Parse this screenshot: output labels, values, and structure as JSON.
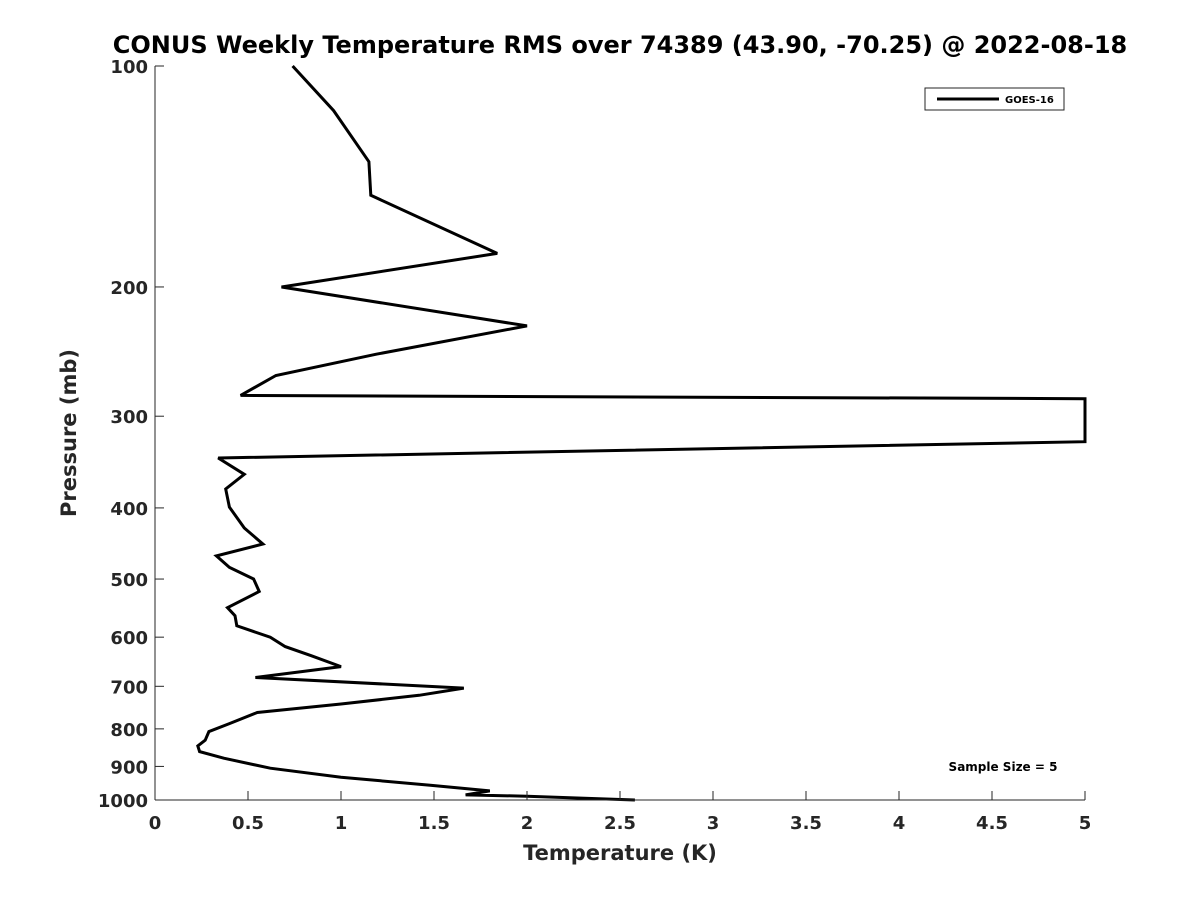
{
  "chart_data": {
    "type": "line",
    "title": "CONUS Weekly Temperature RMS over 74389 (43.90, -70.25) @ 2022-08-18",
    "xlabel": "Temperature (K)",
    "ylabel": "Pressure (mb)",
    "xlim": [
      0,
      5
    ],
    "ylim": [
      100,
      1000
    ],
    "y_scale": "log",
    "y_reversed": true,
    "x_ticks": [
      "0",
      "0.5",
      "1",
      "1.5",
      "2",
      "2.5",
      "3",
      "3.5",
      "4",
      "4.5",
      "5"
    ],
    "y_ticks": [
      "100",
      "200",
      "300",
      "400",
      "500",
      "600",
      "700",
      "800",
      "900",
      "1000"
    ],
    "grid": false,
    "legend_position": "top-right",
    "annotation": "Sample Size = 5",
    "series": [
      {
        "name": "GOES-16",
        "color": "#000000",
        "points": [
          [
            0.74,
            100
          ],
          [
            0.96,
            115
          ],
          [
            1.15,
            135
          ],
          [
            1.16,
            150
          ],
          [
            1.84,
            180
          ],
          [
            0.68,
            200
          ],
          [
            2.0,
            226
          ],
          [
            1.19,
            247
          ],
          [
            0.65,
            264
          ],
          [
            0.46,
            281
          ],
          [
            5.0,
            284
          ],
          [
            5.0,
            325
          ],
          [
            0.34,
            342
          ],
          [
            0.48,
            360
          ],
          [
            0.38,
            377
          ],
          [
            0.4,
            399
          ],
          [
            0.48,
            426
          ],
          [
            0.58,
            448
          ],
          [
            0.33,
            465
          ],
          [
            0.4,
            482
          ],
          [
            0.53,
            500
          ],
          [
            0.56,
            520
          ],
          [
            0.39,
            547
          ],
          [
            0.43,
            561
          ],
          [
            0.44,
            579
          ],
          [
            0.62,
            600
          ],
          [
            0.7,
            618
          ],
          [
            0.84,
            636
          ],
          [
            1.0,
            658
          ],
          [
            0.54,
            681
          ],
          [
            1.66,
            704
          ],
          [
            1.42,
            720
          ],
          [
            1.0,
            740
          ],
          [
            0.55,
            760
          ],
          [
            0.4,
            787
          ],
          [
            0.29,
            807
          ],
          [
            0.27,
            829
          ],
          [
            0.23,
            844
          ],
          [
            0.24,
            859
          ],
          [
            0.37,
            877
          ],
          [
            0.62,
            905
          ],
          [
            1.0,
            931
          ],
          [
            1.48,
            955
          ],
          [
            1.8,
            972
          ],
          [
            1.67,
            984
          ],
          [
            2.0,
            988
          ],
          [
            2.58,
            1000
          ]
        ]
      }
    ]
  }
}
